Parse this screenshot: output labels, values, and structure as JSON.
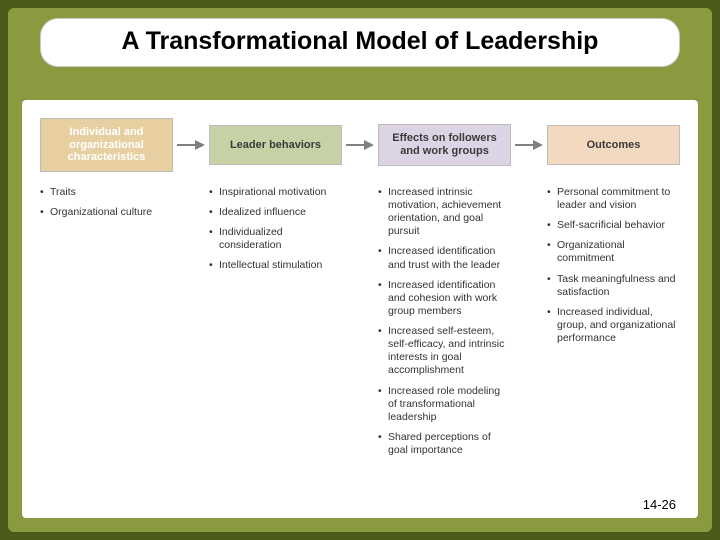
{
  "colors": {
    "outer_bg": "#4a5a1a",
    "inner_bg": "#8a9a3f",
    "arrow": "#808080",
    "box_border": "#bdbdbd"
  },
  "title": "A Transformational Model of Leadership",
  "page_number": "14-26",
  "boxes": [
    {
      "label": "Individual and organizational characteristics",
      "bg": "#e7cfa2",
      "fg": "#ffffff"
    },
    {
      "label": "Leader behaviors",
      "bg": "#c6d2a6",
      "fg": "#3a3a3a"
    },
    {
      "label": "Effects on followers and work groups",
      "bg": "#dcd3e4",
      "fg": "#3a3a3a"
    },
    {
      "label": "Outcomes",
      "bg": "#f3d9c0",
      "fg": "#3a3a3a"
    }
  ],
  "columns": [
    {
      "items": [
        "Traits",
        "Organizational culture"
      ]
    },
    {
      "items": [
        "Inspirational motivation",
        "Idealized influence",
        "Individualized consideration",
        "Intellectual stimulation"
      ]
    },
    {
      "items": [
        "Increased intrinsic motivation, achievement orientation, and goal pursuit",
        "Increased identification and trust with the leader",
        "Increased identification and cohesion with work group members",
        "Increased self-esteem, self-efficacy, and intrinsic interests in goal accomplishment",
        "Increased role modeling of transformational leadership",
        "Shared perceptions of goal importance"
      ]
    },
    {
      "items": [
        "Personal commitment to leader and vision",
        "Self-sacrificial behavior",
        "Organizational commitment",
        "Task meaningfulness and satisfaction",
        "Increased individual, group, and organizational performance"
      ]
    }
  ]
}
